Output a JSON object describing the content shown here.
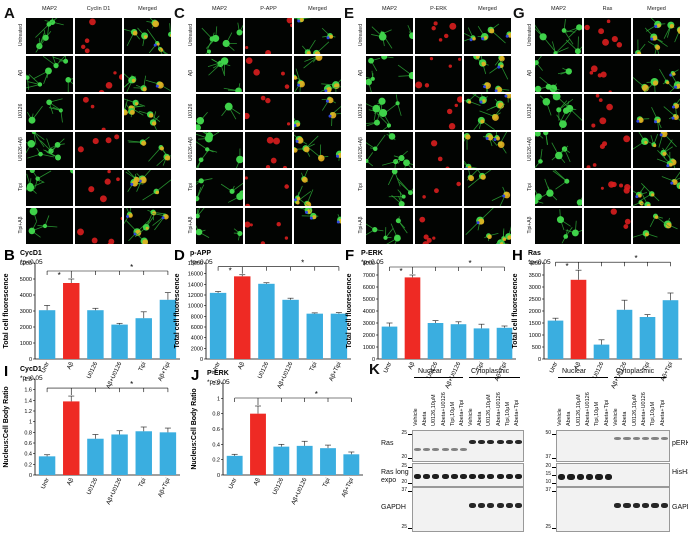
{
  "panels": {
    "A": {
      "label": "A",
      "cols": [
        "MAP2",
        "Cyclin D1",
        "Merged"
      ],
      "rows": [
        "Untreated",
        "Aβ",
        "U0126",
        "U0126+Aβ",
        "Tipi",
        "Tipi+Aβ"
      ],
      "green": "#33c23a",
      "red": "#e02020"
    },
    "C": {
      "label": "C",
      "cols": [
        "MAP2",
        "P-APP",
        "Merged"
      ],
      "rows": [
        "Untreated",
        "Aβ",
        "U0126",
        "U0126+Aβ",
        "Tipi",
        "Tipi+Aβ"
      ]
    },
    "E": {
      "label": "E",
      "cols": [
        "MAP2",
        "P-ERK",
        "Merged"
      ],
      "rows": [
        "Untreated",
        "Aβ",
        "U0126",
        "U0126+Aβ",
        "Tipi",
        "Tipi+Aβ"
      ]
    },
    "G": {
      "label": "G",
      "cols": [
        "MAP2",
        "Ras",
        "Merged"
      ],
      "rows": [
        "Untreated",
        "Aβ",
        "U0126",
        "U0126+Aβ",
        "Tipi",
        "Tipi+Aβ"
      ]
    },
    "K": {
      "label": "K"
    }
  },
  "chart_data": [
    {
      "id": "B",
      "type": "bar",
      "title": "CycD1",
      "subtitle": "*p<0.05",
      "ylabel": "Total cell fluorescence",
      "categories": [
        "Untr",
        "Aβ",
        "U0126",
        "Aβ+U0126",
        "Tipi",
        "Aβ+Tipi"
      ],
      "values": [
        3050,
        4750,
        3050,
        2150,
        2550,
        3700
      ],
      "errors": [
        300,
        250,
        120,
        80,
        400,
        450
      ],
      "ylim": [
        0,
        6000
      ],
      "yticks": [
        0,
        1000,
        2000,
        3000,
        4000,
        5000,
        6000
      ],
      "colors": [
        "#3aaee0",
        "#ee2a24",
        "#3aaee0",
        "#3aaee0",
        "#3aaee0",
        "#3aaee0"
      ],
      "sig": [
        "*",
        "*"
      ]
    },
    {
      "id": "D",
      "type": "bar",
      "title": "p-APP",
      "subtitle": "*p<0.05",
      "ylabel": "Total cell fluorescence",
      "categories": [
        "Untr",
        "Aβ",
        "U0126",
        "Aβ+U0126",
        "Tipi",
        "Aβ+Tipi"
      ],
      "values": [
        12400,
        15500,
        14100,
        11100,
        8500,
        8500
      ],
      "errors": [
        250,
        300,
        200,
        300,
        150,
        200
      ],
      "ylim": [
        0,
        18000
      ],
      "yticks": [
        0,
        2000,
        4000,
        6000,
        8000,
        10000,
        12000,
        14000,
        16000,
        18000
      ],
      "colors": [
        "#3aaee0",
        "#ee2a24",
        "#3aaee0",
        "#3aaee0",
        "#3aaee0",
        "#3aaee0"
      ],
      "sig": [
        "*",
        "*"
      ]
    },
    {
      "id": "F",
      "type": "bar",
      "title": "P-ERK",
      "subtitle": "*p<0.05",
      "ylabel": "Total cell fluorescence",
      "categories": [
        "Untr",
        "Aβ",
        "U0126",
        "Aβ+U0126",
        "Tipi",
        "Aβ+Tipi"
      ],
      "values": [
        2700,
        6800,
        3000,
        2900,
        2550,
        2600
      ],
      "errors": [
        300,
        200,
        200,
        200,
        350,
        150
      ],
      "ylim": [
        0,
        8000
      ],
      "yticks": [
        0,
        1000,
        2000,
        3000,
        4000,
        5000,
        6000,
        7000,
        8000
      ],
      "colors": [
        "#3aaee0",
        "#ee2a24",
        "#3aaee0",
        "#3aaee0",
        "#3aaee0",
        "#3aaee0"
      ],
      "sig": [
        "*",
        "*"
      ]
    },
    {
      "id": "H",
      "type": "bar",
      "title": "Ras",
      "subtitle": "*p<0.05",
      "ylabel": "Total cell fluorescence",
      "categories": [
        "Untr",
        "Aβ",
        "U0126",
        "Aβ+U0126",
        "Tipi",
        "Aβ+Tipi"
      ],
      "values": [
        1600,
        3300,
        600,
        2050,
        1750,
        2450
      ],
      "errors": [
        100,
        400,
        200,
        400,
        100,
        300
      ],
      "ylim": [
        0,
        4000
      ],
      "yticks": [
        0,
        500,
        1000,
        1500,
        2000,
        2500,
        3000,
        3500,
        4000
      ],
      "colors": [
        "#3aaee0",
        "#ee2a24",
        "#3aaee0",
        "#3aaee0",
        "#3aaee0",
        "#3aaee0"
      ],
      "sig": [
        "*",
        "*"
      ]
    },
    {
      "id": "I",
      "type": "bar",
      "title": "CycD1",
      "subtitle": "*p<0.05",
      "ylabel": "Nucleus:Cell Body Ratio",
      "categories": [
        "Untr",
        "Aβ",
        "U0126",
        "Aβ+U0126",
        "Tipi",
        "Aβ+Tipi"
      ],
      "values": [
        0.35,
        1.38,
        0.68,
        0.76,
        0.82,
        0.8
      ],
      "errors": [
        0.03,
        0.1,
        0.08,
        0.07,
        0.08,
        0.08
      ],
      "ylim": [
        0,
        1.8
      ],
      "yticks": [
        0,
        0.2,
        0.4,
        0.6,
        0.8,
        1,
        1.2,
        1.4,
        1.6,
        1.8
      ],
      "colors": [
        "#3aaee0",
        "#ee2a24",
        "#3aaee0",
        "#3aaee0",
        "#3aaee0",
        "#3aaee0"
      ],
      "sig": [
        "*"
      ]
    },
    {
      "id": "J",
      "type": "bar",
      "title": "P-ERK",
      "subtitle": "*p<0.05",
      "ylabel": "Nucleus:Cell Body Ratio",
      "categories": [
        "Untr",
        "Aβ",
        "U0126",
        "Aβ+U0126",
        "Tipi",
        "Aβ+Tipi"
      ],
      "values": [
        0.25,
        0.8,
        0.37,
        0.38,
        0.35,
        0.27
      ],
      "errors": [
        0.02,
        0.1,
        0.03,
        0.06,
        0.04,
        0.03
      ],
      "ylim": [
        0,
        1.2
      ],
      "yticks": [
        0,
        0.2,
        0.4,
        0.6,
        0.8,
        1,
        1.2
      ],
      "colors": [
        "#3aaee0",
        "#ee2a24",
        "#3aaee0",
        "#3aaee0",
        "#3aaee0",
        "#3aaee0"
      ],
      "sig": [
        "*"
      ]
    }
  ],
  "blots": {
    "left": {
      "groups": [
        "Nuclear",
        "Cytoplasmic"
      ],
      "lanes": [
        "Vehicle",
        "Abeta",
        "U0126,10μM",
        "Abeta+U0126",
        "Tipi,10μM",
        "Abeta+Tipi",
        "Vehicle",
        "Abeta",
        "U0126,10μM",
        "Abeta+U0126",
        "Tipi,10μM",
        "Abeta+Tipi"
      ],
      "rows": [
        {
          "label": "Ras",
          "markers": [
            "25",
            "20"
          ]
        },
        {
          "label": "Ras long expo",
          "markers": [
            "25",
            "20"
          ]
        },
        {
          "label": "GAPDH",
          "markers": [
            "37",
            "25"
          ]
        }
      ]
    },
    "right": {
      "groups": [
        "Nuclear",
        "Cytoplasmic"
      ],
      "lanes": [
        "Vehicle",
        "Abeta",
        "U0126,10μM",
        "Abeta+U0126",
        "Tipi,10μM",
        "Abeta+Tipi",
        "Vehicle",
        "Abeta",
        "U0126,10μM",
        "Abeta+U0126",
        "Tipi,10μM",
        "Abeta+Tipi"
      ],
      "rows": [
        {
          "label": "pERK",
          "markers": [
            "50",
            "37"
          ]
        },
        {
          "label": "HisH3",
          "markers": [
            "20",
            "15",
            "10"
          ]
        },
        {
          "label": "GAPDH",
          "markers": [
            "37",
            "25"
          ]
        }
      ]
    }
  }
}
